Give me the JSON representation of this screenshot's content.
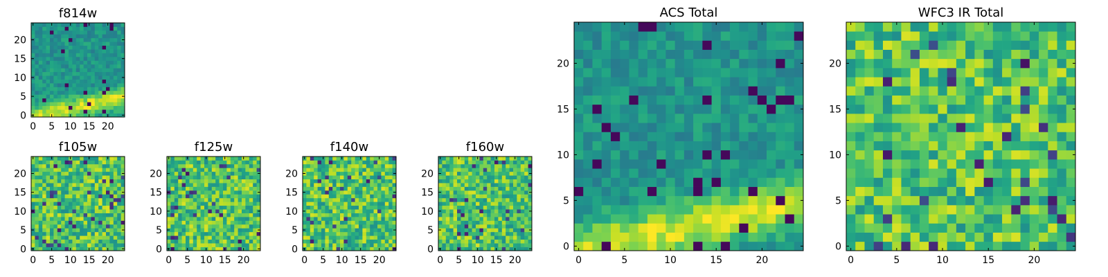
{
  "chart_data": [
    {
      "type": "heatmap",
      "title": "f814w",
      "grid_size": 25,
      "xticks": [
        0,
        5,
        10,
        15,
        20
      ],
      "yticks": [
        0,
        5,
        10,
        15,
        20
      ],
      "pattern": "band",
      "seed": 11,
      "colormap": "viridis"
    },
    {
      "type": "heatmap",
      "title": "f105w",
      "grid_size": 25,
      "xticks": [
        0,
        5,
        10,
        15,
        20
      ],
      "yticks": [
        0,
        5,
        10,
        15,
        20
      ],
      "pattern": "noise",
      "seed": 23,
      "colormap": "viridis"
    },
    {
      "type": "heatmap",
      "title": "f125w",
      "grid_size": 25,
      "xticks": [
        0,
        5,
        10,
        15,
        20
      ],
      "yticks": [
        0,
        5,
        10,
        15,
        20
      ],
      "pattern": "noise",
      "seed": 37,
      "colormap": "viridis"
    },
    {
      "type": "heatmap",
      "title": "f140w",
      "grid_size": 25,
      "xticks": [
        0,
        5,
        10,
        15,
        20
      ],
      "yticks": [
        0,
        5,
        10,
        15,
        20
      ],
      "pattern": "noise",
      "seed": 41,
      "colormap": "viridis"
    },
    {
      "type": "heatmap",
      "title": "f160w",
      "grid_size": 25,
      "xticks": [
        0,
        5,
        10,
        15,
        20
      ],
      "yticks": [
        0,
        5,
        10,
        15,
        20
      ],
      "pattern": "noise",
      "seed": 53,
      "colormap": "viridis"
    },
    {
      "type": "heatmap",
      "title": "ACS Total",
      "grid_size": 25,
      "xticks": [
        0,
        5,
        10,
        15,
        20
      ],
      "yticks": [
        0,
        5,
        10,
        15,
        20
      ],
      "pattern": "band",
      "seed": 67,
      "colormap": "viridis"
    },
    {
      "type": "heatmap",
      "title": "WFC3 IR Total",
      "grid_size": 25,
      "xticks": [
        0,
        5,
        10,
        15,
        20
      ],
      "yticks": [
        0,
        5,
        10,
        15,
        20
      ],
      "pattern": "noise",
      "seed": 79,
      "colormap": "viridis"
    }
  ]
}
